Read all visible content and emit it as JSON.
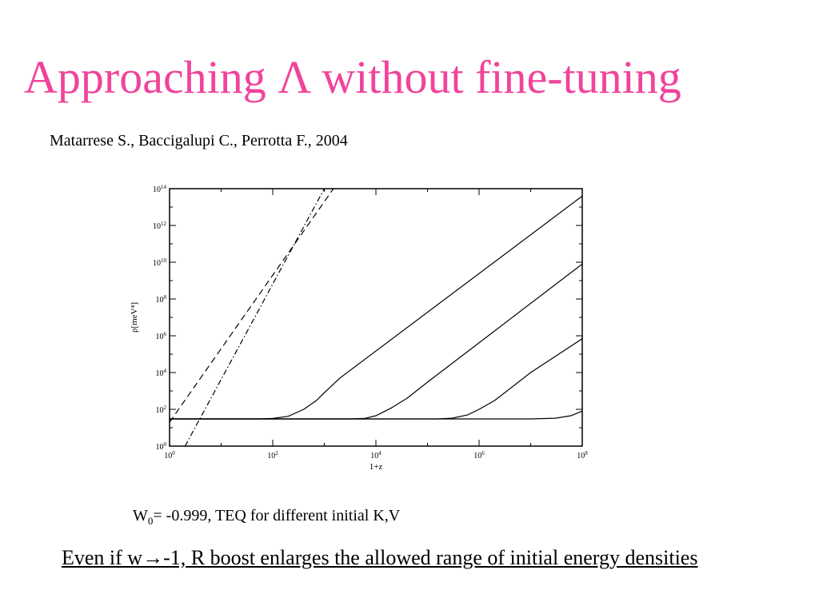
{
  "slide": {
    "title": "Approaching Λ without fine-tuning",
    "citation": "Matarrese S., Baccigalupi C., Perrotta F., 2004",
    "caption": {
      "w_symbol": "W",
      "w_subscript": "0",
      "text": "= -0.999, TEQ for different initial K,V"
    },
    "conclusion": "Even if w→-1, R boost enlarges the allowed range of initial energy densities",
    "title_color": "#f0449a"
  },
  "chart_data": {
    "type": "line",
    "title": "",
    "xlabel": "1+z",
    "ylabel": "ρ[meV⁴]",
    "x_scale": "log",
    "y_scale": "log",
    "xlim": [
      1,
      100000000
    ],
    "ylim": [
      1,
      100000000000000
    ],
    "x_ticks": [
      {
        "base": "10",
        "exp": "0",
        "value": 1
      },
      {
        "base": "10",
        "exp": "2",
        "value": 100
      },
      {
        "base": "10",
        "exp": "4",
        "value": 10000
      },
      {
        "base": "10",
        "exp": "6",
        "value": 1000000
      },
      {
        "base": "10",
        "exp": "8",
        "value": 100000000
      }
    ],
    "y_ticks": [
      {
        "base": "10",
        "exp": "0",
        "value": 1
      },
      {
        "base": "10",
        "exp": "2",
        "value": 100
      },
      {
        "base": "10",
        "exp": "4",
        "value": 10000
      },
      {
        "base": "10",
        "exp": "6",
        "value": 1000000
      },
      {
        "base": "10",
        "exp": "8",
        "value": 100000000
      },
      {
        "base": "10",
        "exp": "10",
        "value": 10000000000
      },
      {
        "base": "10",
        "exp": "12",
        "value": 1000000000000
      },
      {
        "base": "10",
        "exp": "14",
        "value": 100000000000000
      }
    ],
    "series": [
      {
        "style": "dashed",
        "x": [
          1,
          1500
        ],
        "y": [
          20,
          100000000000000
        ]
      },
      {
        "style": "dashdot",
        "x": [
          2,
          1000
        ],
        "y": [
          1,
          100000000000000
        ]
      },
      {
        "style": "solid",
        "x": [
          1,
          50,
          100,
          200,
          400,
          700,
          1000,
          2000,
          100000000
        ],
        "y": [
          30,
          30,
          32,
          42,
          100,
          300,
          800,
          5000,
          40000000000000
        ]
      },
      {
        "style": "solid",
        "x": [
          1,
          3000,
          6000,
          10000,
          20000,
          40000,
          100000,
          100000000
        ],
        "y": [
          30,
          30,
          32,
          45,
          120,
          400,
          3000,
          8000000000
        ]
      },
      {
        "style": "solid",
        "x": [
          1,
          150000,
          300000,
          600000,
          1000000,
          2000000,
          10000000,
          100000000
        ],
        "y": [
          30,
          30,
          33,
          50,
          100,
          300,
          10000,
          700000
        ]
      },
      {
        "style": "solid",
        "x": [
          1,
          10000000,
          30000000,
          60000000,
          100000000
        ],
        "y": [
          30,
          30,
          33,
          45,
          80
        ]
      }
    ]
  }
}
